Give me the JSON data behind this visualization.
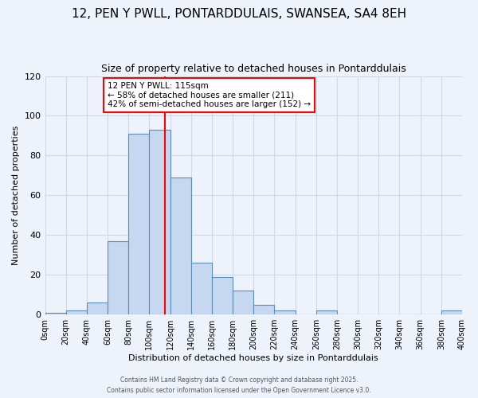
{
  "title": "12, PEN Y PWLL, PONTARDDULAIS, SWANSEA, SA4 8EH",
  "subtitle": "Size of property relative to detached houses in Pontarddulais",
  "xlabel": "Distribution of detached houses by size in Pontarddulais",
  "ylabel": "Number of detached properties",
  "bins": [
    0,
    20,
    40,
    60,
    80,
    100,
    120,
    140,
    160,
    180,
    200,
    220,
    240,
    260,
    280,
    300,
    320,
    340,
    360,
    380,
    400
  ],
  "counts": [
    1,
    2,
    6,
    37,
    91,
    93,
    69,
    26,
    19,
    12,
    5,
    2,
    0,
    2,
    0,
    0,
    0,
    0,
    0,
    2
  ],
  "bar_color": "#c5d8f0",
  "bar_edge_color": "#5b8db8",
  "vline_x": 115,
  "vline_color": "red",
  "annotation_title": "12 PEN Y PWLL: 115sqm",
  "annotation_line1": "← 58% of detached houses are smaller (211)",
  "annotation_line2": "42% of semi-detached houses are larger (152) →",
  "annotation_box_color": "white",
  "annotation_box_edge": "red",
  "ylim": [
    0,
    120
  ],
  "xlim": [
    0,
    400
  ],
  "background_color": "#eef2fb",
  "footer1": "Contains HM Land Registry data © Crown copyright and database right 2025.",
  "footer2": "Contains public sector information licensed under the Open Government Licence v3.0.",
  "title_fontsize": 11,
  "subtitle_fontsize": 9,
  "xlabel_fontsize": 8,
  "ylabel_fontsize": 8,
  "tick_fontsize": 7,
  "tick_labels": [
    "0sqm",
    "20sqm",
    "40sqm",
    "60sqm",
    "80sqm",
    "100sqm",
    "120sqm",
    "140sqm",
    "160sqm",
    "180sqm",
    "200sqm",
    "220sqm",
    "240sqm",
    "260sqm",
    "280sqm",
    "300sqm",
    "320sqm",
    "340sqm",
    "360sqm",
    "380sqm",
    "400sqm"
  ],
  "yticks": [
    0,
    20,
    40,
    60,
    80,
    100,
    120
  ],
  "grid_color": "#d0d8e8",
  "annotation_fontsize": 7.5
}
